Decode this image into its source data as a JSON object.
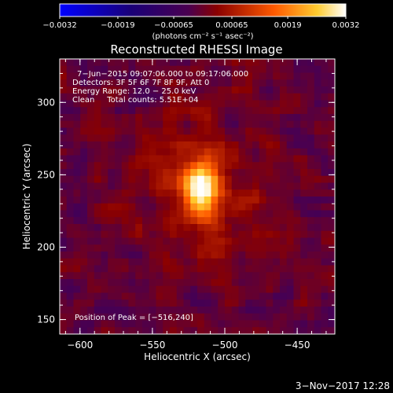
{
  "chart_data": {
    "type": "heatmap",
    "title": "Reconstructed RHESSI Image",
    "xlabel": "Heliocentric X (arcsec)",
    "ylabel": "Heliocentric Y (arcsec)",
    "xlim": [
      -614,
      -424
    ],
    "ylim": [
      140,
      330
    ],
    "x_ticks": [
      -600,
      -550,
      -500,
      -450
    ],
    "y_ticks": [
      150,
      200,
      250,
      300
    ],
    "x_tick_labels": [
      "−600",
      "−550",
      "−500",
      "−450"
    ],
    "y_tick_labels": [
      "150",
      "200",
      "250",
      "300"
    ],
    "colorbar": {
      "min": -0.0032,
      "max": 0.0032,
      "ticks": [
        -0.0032,
        -0.0019,
        -0.00065,
        0.00065,
        0.0019,
        0.0032
      ],
      "tick_labels": [
        "−0.0032",
        "−0.0019",
        "−0.00065",
        "0.00065",
        "0.0019",
        "0.0032"
      ],
      "units_label": "(photons cm⁻² s⁻¹ asec⁻²)"
    },
    "peak": {
      "x": -516,
      "y": 240,
      "value": 0.0032
    },
    "annotations": [
      "7−Jun−2015 09:07:06.000 to 09:17:06.000",
      "Detectors: 3F 5F 6F 7F 8F 9F, Att 0",
      "Energy Range: 12.0 − 25.0 keV",
      "Clean     Total counts: 5.51E+04"
    ],
    "peak_label": "Position of Peak = [−516,240]"
  },
  "footer_date": "3−Nov−2017 12:28"
}
